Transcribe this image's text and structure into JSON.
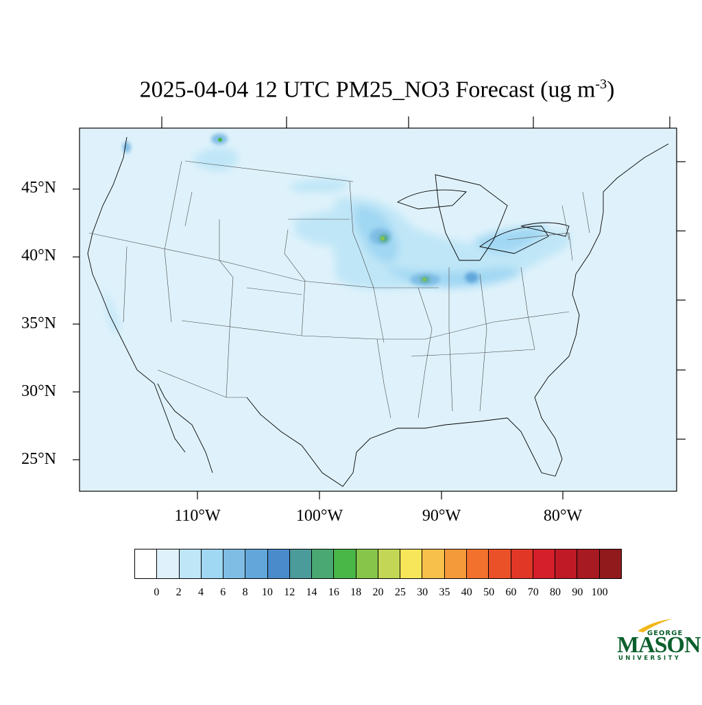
{
  "title": {
    "text": "2025-04-04 12 UTC PM25_NO3 Forecast (ug m",
    "superscript": "-3",
    "close": ")"
  },
  "map": {
    "region": "Contiguous United States",
    "background_color": "#dff2fb",
    "lat_labels": [
      "45°N",
      "40°N",
      "35°N",
      "30°N",
      "25°N"
    ],
    "lon_labels": [
      "110°W",
      "100°W",
      "90°W",
      "80°W"
    ],
    "hotspots": [
      {
        "name": "northern-rockies",
        "level": 12
      },
      {
        "name": "iowa-minnesota",
        "level": 18
      },
      {
        "name": "illinois-indiana",
        "level": 16
      },
      {
        "name": "ohio-valley",
        "level": 10
      },
      {
        "name": "lake-erie-ontario",
        "level": 8
      }
    ]
  },
  "colorbar": {
    "colors": [
      "#ffffff",
      "#dff2fb",
      "#bfe6f7",
      "#a0d7f3",
      "#80bde5",
      "#62a6da",
      "#4a8bcb",
      "#4b9b9a",
      "#4aa872",
      "#49b648",
      "#86c54a",
      "#c3d655",
      "#f8e65a",
      "#f7c04a",
      "#f59a3a",
      "#f1712d",
      "#ea5128",
      "#e03727",
      "#d51f2a",
      "#bf1a26",
      "#a81a21",
      "#901a1c"
    ],
    "labels": [
      "0",
      "2",
      "4",
      "6",
      "8",
      "10",
      "12",
      "14",
      "16",
      "18",
      "20",
      "25",
      "30",
      "35",
      "40",
      "50",
      "60",
      "70",
      "80",
      "90",
      "100"
    ]
  },
  "logo": {
    "line1": "GEORGE",
    "line2": "MASON",
    "line3": "UNIVERSITY",
    "color": "#0b5f2c",
    "accent": "#f2b619"
  }
}
